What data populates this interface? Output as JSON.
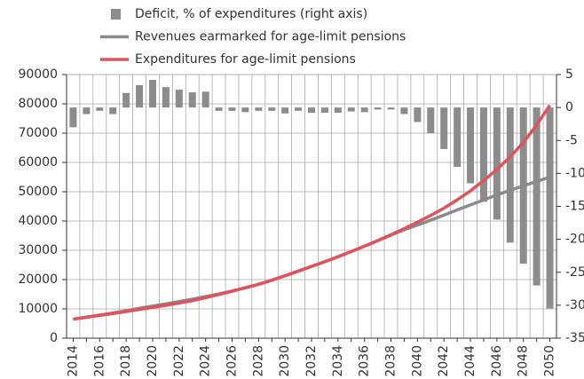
{
  "chart_data": {
    "type": "combo",
    "categories": [
      "2014",
      null,
      "2016",
      null,
      "2018",
      null,
      "2020",
      null,
      "2022",
      null,
      "2024",
      null,
      "2026",
      null,
      "2028",
      null,
      "2030",
      null,
      "2032",
      null,
      "2034",
      null,
      "2036",
      null,
      "2038",
      null,
      "2040",
      null,
      "2042",
      null,
      "2044",
      null,
      "2046",
      null,
      "2048",
      null,
      "2050"
    ],
    "series": [
      {
        "name": "Deficit, % of expenditures (right axis)",
        "type": "bar",
        "axis": "y2",
        "color": "#8c8c8c",
        "values": [
          -3.0,
          -1.0,
          -0.5,
          -1.0,
          2.2,
          3.4,
          4.2,
          3.1,
          2.7,
          2.3,
          2.4,
          -0.5,
          -0.5,
          -0.7,
          -0.5,
          -0.5,
          -0.9,
          -0.5,
          -0.8,
          -0.8,
          -0.8,
          -0.6,
          -0.7,
          -0.3,
          -0.3,
          -1.0,
          -2.2,
          -3.9,
          -6.3,
          -9.0,
          -11.5,
          -14.3,
          -17.0,
          -20.5,
          -23.7,
          -27.0,
          -30.5
        ]
      },
      {
        "name": "Revenues earmarked for age-limit pensions",
        "type": "line",
        "color": "#8a8a8a",
        "values": [
          6500,
          7200,
          7900,
          8600,
          9400,
          10200,
          11000,
          11700,
          12500,
          13300,
          14200,
          15100,
          16100,
          17200,
          18400,
          19800,
          21300,
          22900,
          24500,
          26100,
          27800,
          29600,
          31400,
          33300,
          35200,
          37000,
          38600,
          40300,
          42000,
          43800,
          45500,
          47200,
          48900,
          50500,
          52000,
          53500,
          55000
        ]
      },
      {
        "name": "Expenditures  for age-limit pensions",
        "type": "line",
        "color": "#e0525c",
        "values": [
          6500,
          7100,
          7800,
          8400,
          9100,
          9800,
          10500,
          11200,
          12000,
          12800,
          13800,
          14900,
          16000,
          17200,
          18400,
          19800,
          21300,
          22900,
          24500,
          26100,
          27800,
          29600,
          31400,
          33300,
          35300,
          37400,
          39600,
          41900,
          44400,
          47200,
          50300,
          53800,
          57600,
          61900,
          66800,
          72800,
          79500
        ]
      }
    ],
    "ylim": [
      0,
      90000
    ],
    "yticks": [
      0,
      10000,
      20000,
      30000,
      40000,
      50000,
      60000,
      70000,
      80000,
      90000
    ],
    "y2lim": [
      -35,
      5
    ],
    "y2ticks": [
      -35,
      -30,
      -25,
      -20,
      -15,
      -10,
      -5,
      0,
      5
    ],
    "grid": true
  }
}
